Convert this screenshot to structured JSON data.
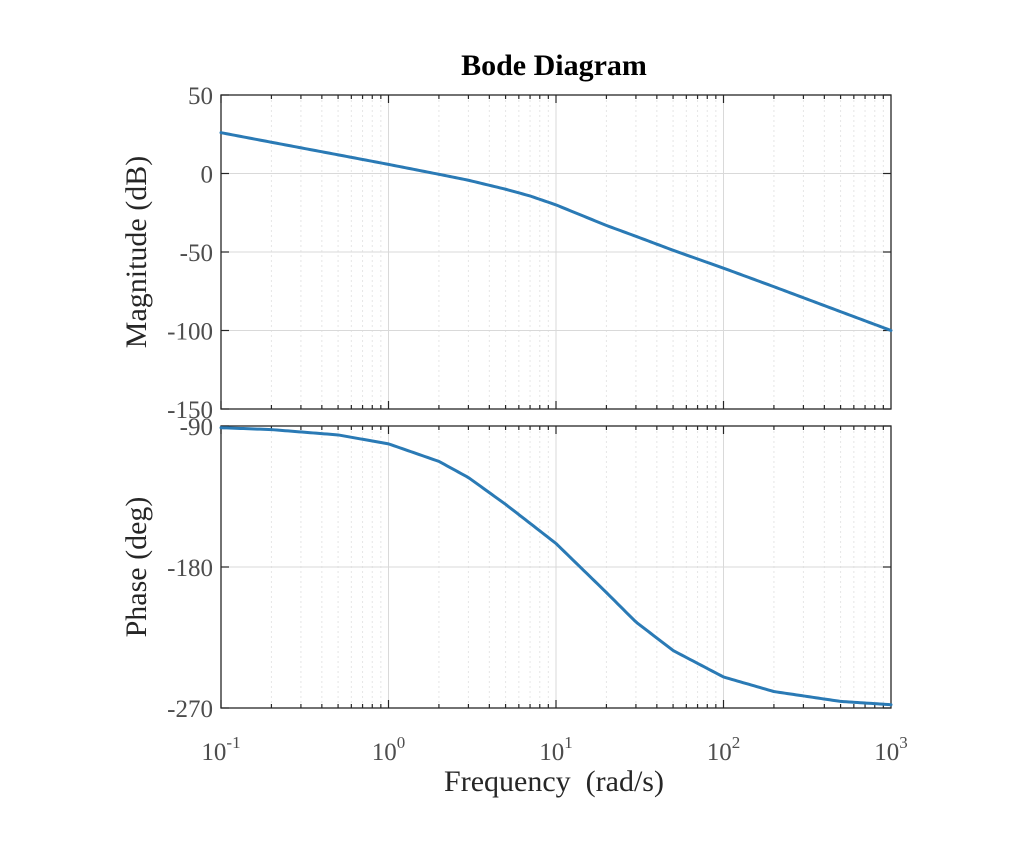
{
  "chart_data": {
    "type": "line",
    "title": "Bode Diagram",
    "xlabel": "Frequency  (rad/s)",
    "x_scale": "log",
    "xlim": [
      0.1,
      1000
    ],
    "xticks": [
      {
        "value": 0.1,
        "base": "10",
        "exp": "-1"
      },
      {
        "value": 1,
        "base": "10",
        "exp": "0"
      },
      {
        "value": 10,
        "base": "10",
        "exp": "1"
      },
      {
        "value": 100,
        "base": "10",
        "exp": "2"
      },
      {
        "value": 1000,
        "base": "10",
        "exp": "3"
      }
    ],
    "grid": true,
    "panels": [
      {
        "name": "magnitude",
        "ylabel": "Magnitude (dB)",
        "ylim": [
          -150,
          50
        ],
        "yticks": [
          50,
          0,
          -50,
          -100,
          -150
        ],
        "ytick_labels": [
          "50",
          "0",
          "-50",
          "-100",
          "-150"
        ],
        "series": [
          {
            "name": "magnitude",
            "color": "#2a7ab5",
            "x": [
              0.1,
              0.2,
              0.5,
              1,
              2,
              3,
              5,
              7,
              10,
              20,
              30,
              50,
              100,
              200,
              500,
              1000
            ],
            "y": [
              26,
              19.9,
              11.9,
              5.8,
              -0.5,
              -4.3,
              -10,
              -14.3,
              -20,
              -33.1,
              -40,
              -48.9,
              -60.3,
              -72.1,
              -88,
              -100
            ]
          }
        ]
      },
      {
        "name": "phase",
        "ylabel": "Phase (deg)",
        "ylim": [
          -270,
          -90
        ],
        "yticks": [
          -90,
          -180,
          -270
        ],
        "ytick_labels": [
          "-90",
          "-180",
          "-270"
        ],
        "series": [
          {
            "name": "phase",
            "color": "#2a7ab5",
            "x": [
              0.1,
              0.2,
              0.5,
              1,
              2,
              3,
              5,
              7,
              10,
              20,
              30,
              50,
              100,
              200,
              500,
              1000
            ],
            "y": [
              -91.1,
              -92.3,
              -95.7,
              -101.4,
              -112.6,
              -122.9,
              -140,
              -152.1,
              -165,
              -196.3,
              -215.1,
              -233.3,
              -250.2,
              -259.5,
              -265.8,
              -267.9
            ]
          }
        ]
      }
    ]
  }
}
